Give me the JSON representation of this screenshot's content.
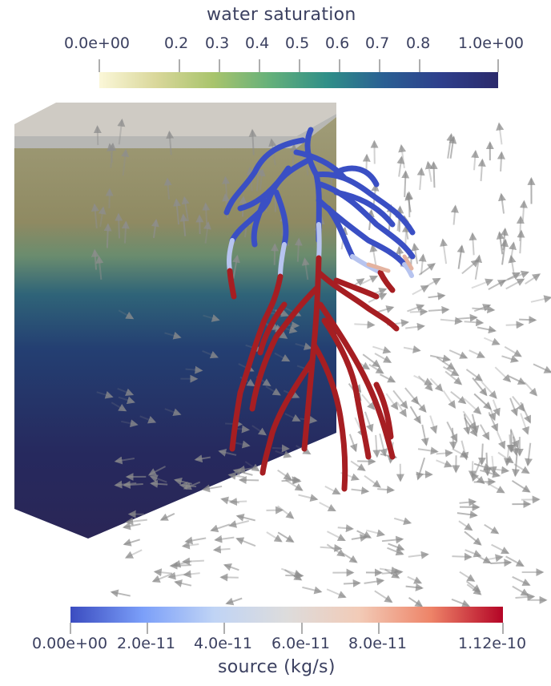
{
  "top_colorbar": {
    "title": "water saturation",
    "ticks": [
      "0.0e+00",
      "0.2",
      "0.3",
      "0.4",
      "0.5",
      "0.6",
      "0.7",
      "0.8",
      "1.0e+00"
    ],
    "range": [
      0.0,
      1.0
    ],
    "colormap": [
      "#fbf7d8",
      "#d9d79a",
      "#a8c46c",
      "#64b07a",
      "#2f8f88",
      "#2a5f93",
      "#2e3f8c",
      "#2b2a6b"
    ]
  },
  "bottom_colorbar": {
    "title": "source (kg/s)",
    "ticks": [
      "0.00e+00",
      "2.0e-11",
      "4.0e-11",
      "6.0e-11",
      "8.0e-11",
      "1.12e-10"
    ],
    "range": [
      0.0,
      1.12e-10
    ],
    "colormap": [
      "#3b4cc0",
      "#7b9ff9",
      "#c0d4f5",
      "#dddcdc",
      "#f2cbb7",
      "#ee8468",
      "#b40426"
    ]
  },
  "scene": {
    "soil_block_colors": [
      "#b9b9b6",
      "#a09a72",
      "#8c8c66",
      "#5c8a7a",
      "#2e5e7c",
      "#233c70",
      "#262659"
    ],
    "arrow_color": "#8e8e8e",
    "root_colors": {
      "high_source": "#a61e22",
      "low_source": "#3a4fc4",
      "mid_source": "#d8d8e4"
    }
  }
}
